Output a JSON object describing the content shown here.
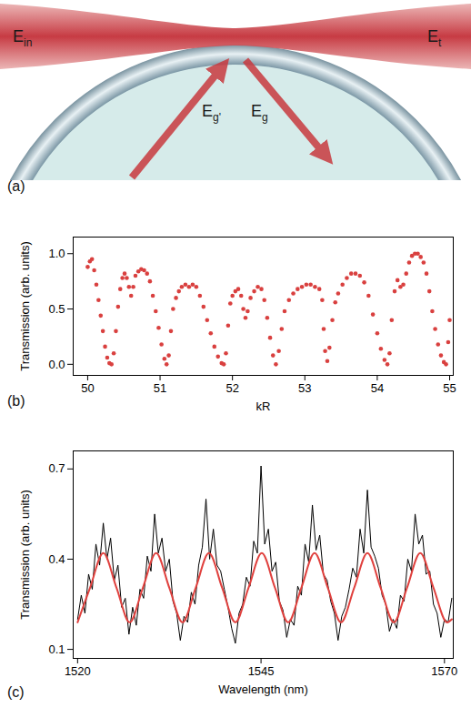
{
  "diagram": {
    "panel_label": "(a)",
    "labels": [
      {
        "main": "E",
        "sub": "in"
      },
      {
        "main": "E",
        "sub": "t"
      },
      {
        "main": "E",
        "sub": "g'"
      },
      {
        "main": "E",
        "sub": "g"
      }
    ]
  },
  "chart_data": [
    {
      "panel_label": "(b)",
      "type": "scatter",
      "marker": "circle",
      "color": "#d9403f",
      "xlabel": "kR",
      "ylabel": "Transmission (arb. units)",
      "xlim": [
        49.8,
        55.05
      ],
      "xticks": [
        50,
        51,
        52,
        53,
        54,
        55
      ],
      "ylim": [
        -0.1,
        1.15
      ],
      "yticks": [
        {
          "value": 0,
          "label": "0.0"
        },
        {
          "value": 0.5,
          "label": "0.5"
        },
        {
          "value": 1,
          "label": "1.0"
        }
      ],
      "x": [
        50.0,
        50.03,
        50.06,
        50.09,
        50.12,
        50.15,
        50.18,
        50.21,
        50.24,
        50.27,
        50.3,
        50.33,
        50.36,
        50.39,
        50.42,
        50.45,
        50.48,
        50.51,
        50.54,
        50.57,
        50.6,
        50.63,
        50.66,
        50.7,
        50.74,
        50.78,
        50.82,
        50.86,
        50.9,
        50.94,
        50.98,
        51.02,
        51.06,
        51.09,
        51.12,
        51.15,
        51.18,
        51.22,
        51.26,
        51.3,
        51.35,
        51.4,
        51.45,
        51.5,
        51.55,
        51.6,
        51.65,
        51.7,
        51.75,
        51.8,
        51.85,
        51.88,
        51.91,
        51.94,
        51.97,
        52.0,
        52.04,
        52.08,
        52.12,
        52.15,
        52.18,
        52.21,
        52.25,
        52.3,
        52.35,
        52.4,
        52.44,
        52.48,
        52.52,
        52.56,
        52.6,
        52.64,
        52.68,
        52.72,
        52.78,
        52.84,
        52.9,
        52.96,
        53.02,
        53.08,
        53.14,
        53.2,
        53.24,
        53.26,
        53.28,
        53.31,
        53.34,
        53.38,
        53.42,
        53.46,
        53.52,
        53.58,
        53.64,
        53.7,
        53.76,
        53.82,
        53.88,
        53.94,
        54.0,
        54.05,
        54.1,
        54.14,
        54.17,
        54.2,
        54.24,
        54.28,
        54.32,
        54.36,
        54.4,
        54.44,
        54.48,
        54.52,
        54.56,
        54.6,
        54.64,
        54.68,
        54.72,
        54.76,
        54.8,
        54.84,
        54.88,
        54.92,
        54.95,
        54.98,
        55.0
      ],
      "values": [
        0.88,
        0.93,
        0.95,
        0.85,
        0.72,
        0.58,
        0.44,
        0.3,
        0.16,
        0.06,
        0.01,
        0.0,
        0.1,
        0.3,
        0.52,
        0.68,
        0.78,
        0.82,
        0.78,
        0.7,
        0.62,
        0.7,
        0.8,
        0.84,
        0.86,
        0.85,
        0.82,
        0.75,
        0.62,
        0.48,
        0.33,
        0.18,
        0.05,
        0.0,
        0.08,
        0.3,
        0.5,
        0.6,
        0.66,
        0.7,
        0.72,
        0.7,
        0.72,
        0.7,
        0.62,
        0.52,
        0.4,
        0.28,
        0.16,
        0.07,
        0.01,
        0.0,
        0.1,
        0.35,
        0.55,
        0.62,
        0.66,
        0.68,
        0.62,
        0.5,
        0.42,
        0.48,
        0.6,
        0.66,
        0.7,
        0.68,
        0.58,
        0.42,
        0.24,
        0.08,
        0.0,
        0.12,
        0.32,
        0.48,
        0.58,
        0.64,
        0.68,
        0.7,
        0.72,
        0.72,
        0.7,
        0.68,
        0.58,
        0.32,
        0.12,
        0.03,
        0.15,
        0.4,
        0.56,
        0.64,
        0.72,
        0.78,
        0.82,
        0.82,
        0.8,
        0.74,
        0.62,
        0.45,
        0.28,
        0.14,
        0.04,
        0.0,
        0.1,
        0.4,
        0.66,
        0.76,
        0.7,
        0.72,
        0.82,
        0.92,
        0.98,
        1.0,
        1.0,
        0.97,
        0.92,
        0.82,
        0.66,
        0.48,
        0.32,
        0.18,
        0.08,
        0.02,
        0.0,
        0.2,
        0.4
      ]
    },
    {
      "panel_label": "(c)",
      "type": "line",
      "line_style": "solid",
      "xlabel": "Wavelength (nm)",
      "ylabel": "Transmission (arb. units)",
      "xlim": [
        1519.4,
        1571.2
      ],
      "xticks": [
        1520,
        1545,
        1570
      ],
      "ylim": [
        0.07,
        0.76
      ],
      "yticks": [
        0.1,
        0.4,
        0.7
      ],
      "series": [
        {
          "color": "#000000",
          "x": [
            1520,
            1520.5,
            1521,
            1521.5,
            1522,
            1522.5,
            1523,
            1523.5,
            1524,
            1524.5,
            1525,
            1525.5,
            1526,
            1526.5,
            1527,
            1527.5,
            1528,
            1528.5,
            1529,
            1529.5,
            1530,
            1530.5,
            1531,
            1531.5,
            1532,
            1532.5,
            1533,
            1533.5,
            1534,
            1534.5,
            1535,
            1535.5,
            1536,
            1536.5,
            1537,
            1537.5,
            1538,
            1538.5,
            1539,
            1539.5,
            1540,
            1540.5,
            1541,
            1541.5,
            1542,
            1542.5,
            1543,
            1543.5,
            1544,
            1544.5,
            1545,
            1545.5,
            1546,
            1546.5,
            1547,
            1547.5,
            1548,
            1548.5,
            1549,
            1549.5,
            1550,
            1550.5,
            1551,
            1551.5,
            1552,
            1552.5,
            1553,
            1553.5,
            1554,
            1554.5,
            1555,
            1555.5,
            1556,
            1556.5,
            1557,
            1557.5,
            1558,
            1558.5,
            1559,
            1559.5,
            1560,
            1560.5,
            1561,
            1561.5,
            1562,
            1562.5,
            1563,
            1563.5,
            1564,
            1564.5,
            1565,
            1565.5,
            1566,
            1566.5,
            1567,
            1567.5,
            1568,
            1568.5,
            1569,
            1569.5,
            1570,
            1570.5,
            1571
          ],
          "values": [
            0.2,
            0.28,
            0.22,
            0.35,
            0.3,
            0.45,
            0.38,
            0.52,
            0.4,
            0.47,
            0.33,
            0.38,
            0.24,
            0.27,
            0.15,
            0.24,
            0.18,
            0.3,
            0.27,
            0.41,
            0.36,
            0.55,
            0.42,
            0.47,
            0.36,
            0.4,
            0.26,
            0.22,
            0.13,
            0.21,
            0.19,
            0.29,
            0.25,
            0.38,
            0.44,
            0.6,
            0.4,
            0.5,
            0.38,
            0.36,
            0.3,
            0.24,
            0.17,
            0.12,
            0.22,
            0.25,
            0.34,
            0.31,
            0.46,
            0.42,
            0.71,
            0.45,
            0.5,
            0.36,
            0.39,
            0.26,
            0.23,
            0.14,
            0.2,
            0.18,
            0.31,
            0.28,
            0.45,
            0.39,
            0.58,
            0.43,
            0.48,
            0.35,
            0.33,
            0.26,
            0.22,
            0.13,
            0.21,
            0.24,
            0.3,
            0.37,
            0.34,
            0.5,
            0.42,
            0.63,
            0.44,
            0.41,
            0.37,
            0.28,
            0.25,
            0.16,
            0.2,
            0.17,
            0.28,
            0.26,
            0.4,
            0.36,
            0.55,
            0.45,
            0.48,
            0.35,
            0.36,
            0.25,
            0.22,
            0.14,
            0.2,
            0.19,
            0.27
          ]
        },
        {
          "color": "#e0413e",
          "x": [
            1520,
            1521.7,
            1523.5,
            1525.3,
            1527.1,
            1528.9,
            1530.7,
            1532.5,
            1534.3,
            1536.1,
            1537.9,
            1539.7,
            1541.5,
            1543.3,
            1545.1,
            1546.9,
            1548.7,
            1550.5,
            1552.3,
            1554.1,
            1555.9,
            1557.7,
            1559.5,
            1561.3,
            1563.1,
            1564.9,
            1566.7,
            1568.5,
            1570.3,
            1571
          ],
          "values": [
            0.19,
            0.305,
            0.42,
            0.305,
            0.19,
            0.305,
            0.42,
            0.305,
            0.19,
            0.305,
            0.42,
            0.305,
            0.19,
            0.305,
            0.42,
            0.305,
            0.19,
            0.305,
            0.42,
            0.305,
            0.19,
            0.305,
            0.42,
            0.305,
            0.19,
            0.305,
            0.42,
            0.305,
            0.19,
            0.2
          ]
        }
      ]
    }
  ]
}
